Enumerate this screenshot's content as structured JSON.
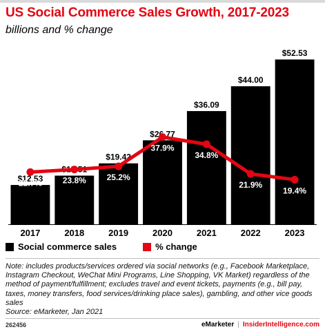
{
  "header": {
    "title": "US Social Commerce Sales Growth, 2017-2023",
    "subtitle": "billions and % change"
  },
  "colors": {
    "bar": "#000000",
    "line": "#e30613",
    "title": "#e30613"
  },
  "chart_data": {
    "type": "bar",
    "categories": [
      "2017",
      "2018",
      "2019",
      "2020",
      "2021",
      "2022",
      "2023"
    ],
    "series": [
      {
        "name": "Social commerce sales",
        "type": "bar",
        "values": [
          12.53,
          15.51,
          19.42,
          26.77,
          36.09,
          44.0,
          52.53
        ],
        "labels": [
          "$12.53",
          "$15.51",
          "$19.42",
          "$26.77",
          "$36.09",
          "$44.00",
          "$52.53"
        ]
      },
      {
        "name": "% change",
        "type": "line",
        "values": [
          22.7,
          23.8,
          25.2,
          37.9,
          34.8,
          21.9,
          19.4
        ],
        "labels": [
          "22.7%",
          "23.8%",
          "25.2%",
          "37.9%",
          "34.8%",
          "21.9%",
          "19.4%"
        ]
      }
    ],
    "ylim": [
      0,
      55
    ],
    "y2lim": [
      0,
      75
    ],
    "grid": false,
    "legend": "bottom-left"
  },
  "legend": {
    "bars": "Social commerce sales",
    "line": "% change"
  },
  "note": "Note: includes products/services ordered via social networks (e.g., Facebook Marketplace, Instagram Checkout, WeChat Mini Programs, Line Shopping, VK Market) regardless of the method of payment/fulfillment; excludes travel and event tickets, payments (e.g., bill pay, taxes, money transfers, food services/drinking place sales), gambling, and other vice goods sales",
  "source": "Source: eMarketer, Jan 2021",
  "footer": {
    "id": "262456",
    "brand": "eMarketer",
    "separator": "|",
    "site": "InsiderIntelligence.com"
  }
}
